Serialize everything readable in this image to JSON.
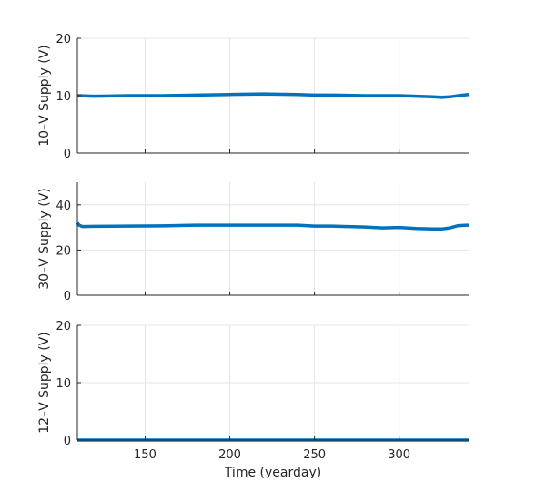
{
  "chart_data": [
    {
      "type": "line",
      "title": "",
      "ylabel": "10–V Supply (V)",
      "xlabel": "",
      "xlim": [
        110,
        341
      ],
      "ylim": [
        0,
        20
      ],
      "yticks": [
        0,
        10,
        20
      ],
      "xticks": [
        150,
        200,
        250,
        300
      ],
      "show_xticklabels": false,
      "grid": true,
      "color": "#0072BD",
      "x": [
        110,
        120,
        140,
        160,
        180,
        200,
        220,
        240,
        250,
        260,
        280,
        300,
        310,
        320,
        325,
        330,
        335,
        341
      ],
      "y": [
        10.0,
        9.9,
        10.0,
        10.0,
        10.1,
        10.2,
        10.3,
        10.2,
        10.1,
        10.1,
        10.0,
        10.0,
        9.9,
        9.8,
        9.7,
        9.8,
        10.0,
        10.2
      ]
    },
    {
      "type": "line",
      "title": "",
      "ylabel": "30–V Supply (V)",
      "xlabel": "",
      "xlim": [
        110,
        341
      ],
      "ylim": [
        0,
        50
      ],
      "yticks": [
        0,
        20,
        40
      ],
      "xticks": [
        150,
        200,
        250,
        300
      ],
      "show_xticklabels": false,
      "grid": true,
      "color": "#0072BD",
      "x": [
        110,
        111,
        113,
        120,
        140,
        160,
        180,
        200,
        220,
        240,
        250,
        260,
        270,
        280,
        290,
        300,
        310,
        320,
        325,
        330,
        335,
        341
      ],
      "y": [
        32.0,
        31.0,
        30.4,
        30.5,
        30.6,
        30.7,
        31.0,
        31.0,
        31.0,
        31.0,
        30.6,
        30.6,
        30.4,
        30.2,
        29.8,
        30.0,
        29.5,
        29.3,
        29.3,
        29.8,
        30.8,
        31.0
      ]
    },
    {
      "type": "line",
      "title": "",
      "ylabel": "12–V Supply (V)",
      "xlabel": "Time (yearday)",
      "xlim": [
        110,
        341
      ],
      "ylim": [
        0,
        20
      ],
      "yticks": [
        0,
        10,
        20
      ],
      "xticks": [
        150,
        200,
        250,
        300
      ],
      "show_xticklabels": true,
      "grid": true,
      "color": "#0072BD",
      "x": [
        110,
        341
      ],
      "y": [
        0,
        0
      ]
    }
  ]
}
